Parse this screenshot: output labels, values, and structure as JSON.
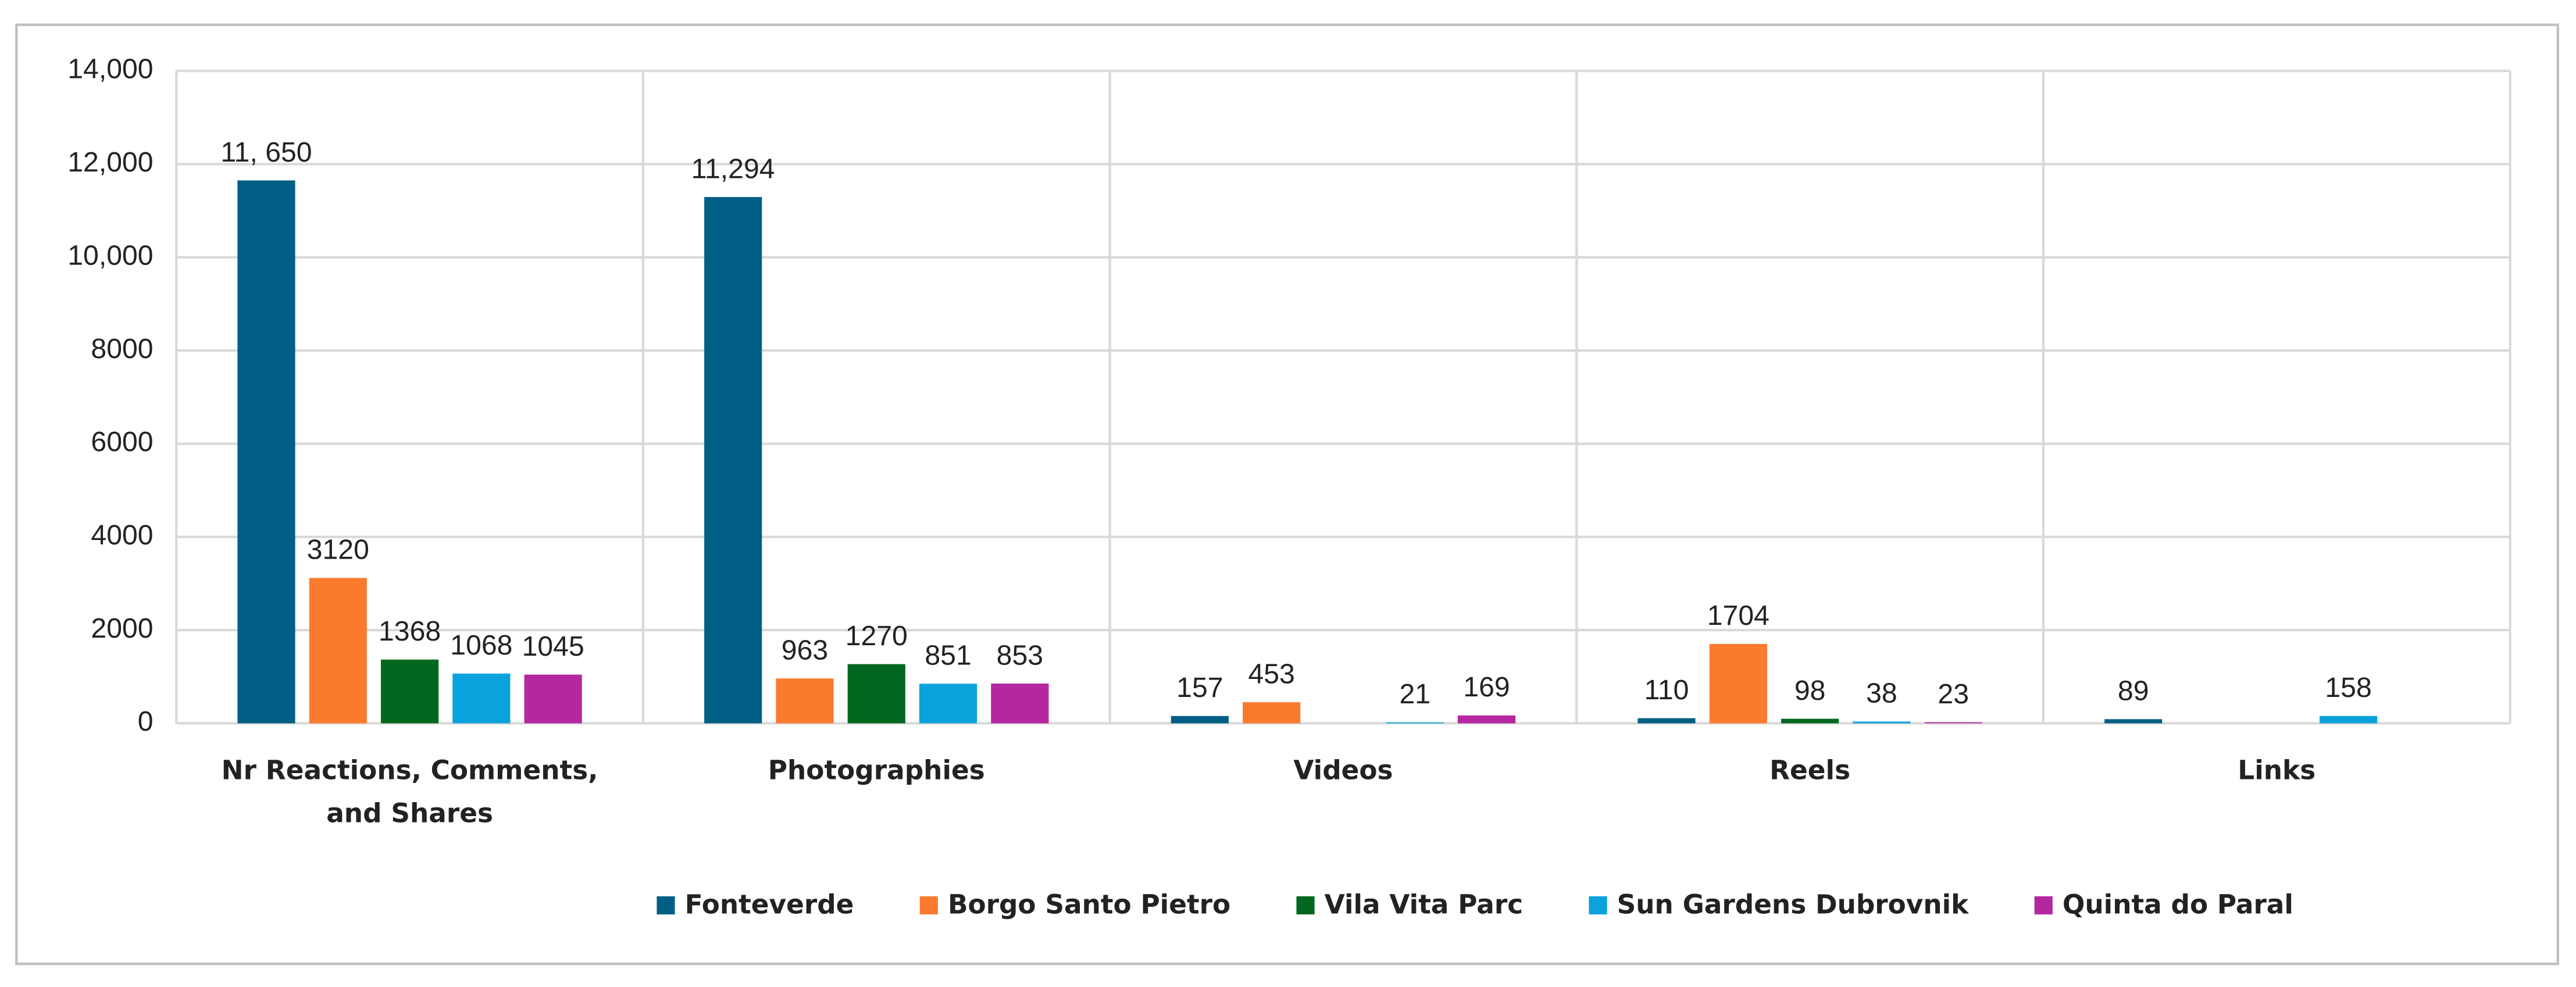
{
  "chart_data": {
    "type": "bar",
    "categories": [
      "Nr Reactions, Comments, and Shares",
      "Photographies",
      "Videos",
      "Reels",
      "Links"
    ],
    "series": [
      {
        "name": "Fonteverde",
        "color": "#015f85",
        "values": [
          11650,
          11294,
          157,
          110,
          89
        ],
        "value_labels": [
          "11, 650",
          "11,294",
          "157",
          "110",
          "89"
        ]
      },
      {
        "name": "Borgo Santo Pietro",
        "color": "#fb7b2e",
        "values": [
          3120,
          963,
          453,
          1704,
          null
        ],
        "value_labels": [
          "3120",
          "963",
          "453",
          "1704",
          null
        ]
      },
      {
        "name": "Vila Vita Parc",
        "color": "#03681f",
        "values": [
          1368,
          1270,
          null,
          98,
          null
        ],
        "value_labels": [
          "1368",
          "1270",
          null,
          "98",
          null
        ]
      },
      {
        "name": "Sun Gardens Dubrovnik",
        "color": "#0aa2dc",
        "values": [
          1068,
          851,
          21,
          38,
          158
        ],
        "value_labels": [
          "1068",
          "851",
          "21",
          "38",
          "158"
        ]
      },
      {
        "name": "Quinta do Paral",
        "color": "#b5279e",
        "values": [
          1045,
          853,
          169,
          23,
          null
        ],
        "value_labels": [
          "1045",
          "853",
          "169",
          "23",
          null
        ]
      }
    ],
    "ylim": [
      0,
      14000
    ],
    "yticks": [
      0,
      2000,
      4000,
      6000,
      8000,
      {
        "value": 10000,
        "label": "10,000"
      },
      {
        "value": 12000,
        "label": "12,000"
      },
      {
        "value": 14000,
        "label": "14,000"
      }
    ],
    "grid": true,
    "legend": "bottom"
  }
}
